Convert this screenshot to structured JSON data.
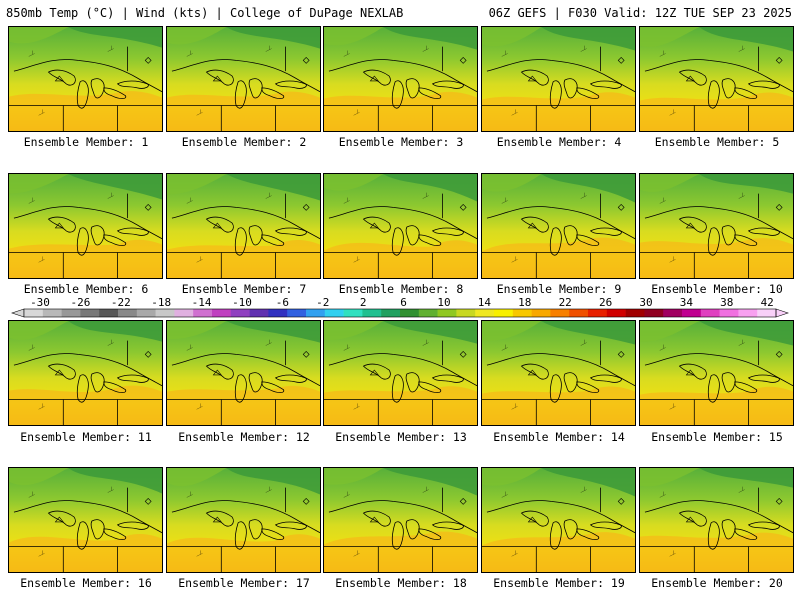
{
  "header": {
    "left": "850mb Temp (°C) | Wind (kts) | College of DuPage NEXLAB",
    "right": "06Z GEFS | F030 Valid: 12Z TUE SEP 23 2025"
  },
  "members": [
    {
      "label": "Ensemble Member: 1"
    },
    {
      "label": "Ensemble Member: 2"
    },
    {
      "label": "Ensemble Member: 3"
    },
    {
      "label": "Ensemble Member: 4"
    },
    {
      "label": "Ensemble Member: 5"
    },
    {
      "label": "Ensemble Member: 6"
    },
    {
      "label": "Ensemble Member: 7"
    },
    {
      "label": "Ensemble Member: 8"
    },
    {
      "label": "Ensemble Member: 9"
    },
    {
      "label": "Ensemble Member: 10"
    },
    {
      "label": "Ensemble Member: 11"
    },
    {
      "label": "Ensemble Member: 12"
    },
    {
      "label": "Ensemble Member: 13"
    },
    {
      "label": "Ensemble Member: 14"
    },
    {
      "label": "Ensemble Member: 15"
    },
    {
      "label": "Ensemble Member: 16"
    },
    {
      "label": "Ensemble Member: 17"
    },
    {
      "label": "Ensemble Member: 18"
    },
    {
      "label": "Ensemble Member: 19"
    },
    {
      "label": "Ensemble Member: 20"
    }
  ],
  "colorbar": {
    "labels": [
      "-30",
      "-26",
      "-22",
      "-18",
      "-14",
      "-10",
      "-6",
      "-2",
      "2",
      "6",
      "10",
      "14",
      "18",
      "22",
      "26",
      "30",
      "34",
      "38",
      "42"
    ],
    "colors": [
      "#d8d8d8",
      "#b8b8b8",
      "#989898",
      "#787878",
      "#585858",
      "#888888",
      "#a8a8a8",
      "#c8c8c8",
      "#e0b0e0",
      "#d070d0",
      "#c040c0",
      "#9040c0",
      "#6030b0",
      "#3030c0",
      "#3060e0",
      "#30a0f0",
      "#30d0f0",
      "#30e0c0",
      "#20c090",
      "#20a060",
      "#309030",
      "#60b030",
      "#90c820",
      "#c8d820",
      "#f0e820",
      "#f8f000",
      "#f8c800",
      "#f8a800",
      "#f88000",
      "#f05000",
      "#e82000",
      "#d00000",
      "#a00000",
      "#900020",
      "#a00060",
      "#c00090",
      "#e040c0",
      "#f070e0",
      "#f8a0f0",
      "#f8d0f8"
    ]
  }
}
